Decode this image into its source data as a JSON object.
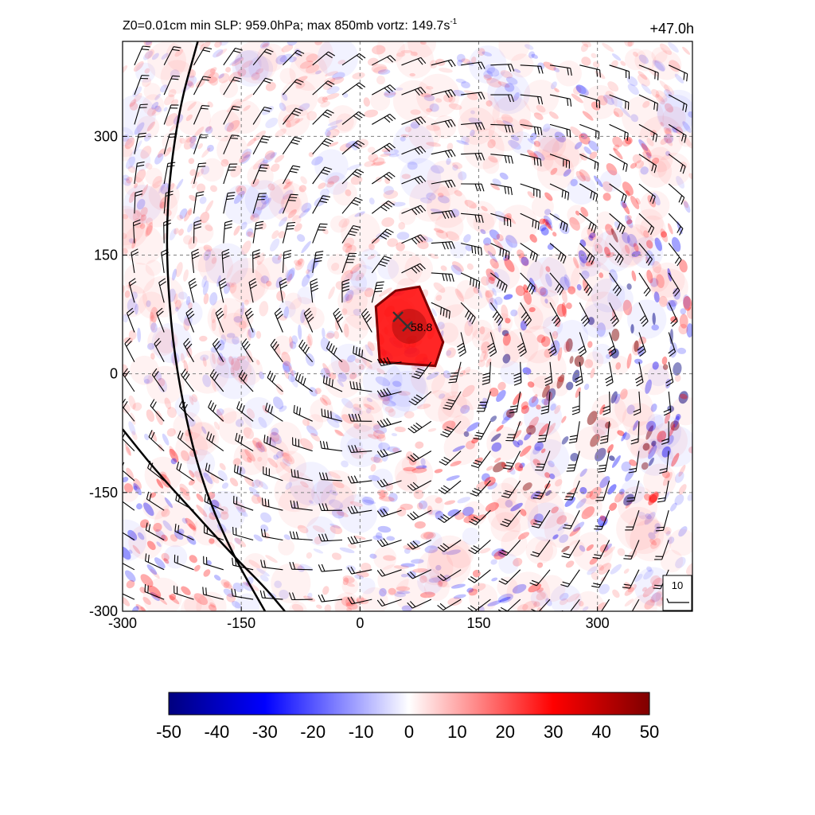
{
  "title": {
    "left_text": "Z0=0.01cm  min SLP: 959.0hPa; max 850mb vortz: 149.7s",
    "left_superscript": "-1",
    "right_text": "+47.0h"
  },
  "colors": {
    "negative_max": "#00007f",
    "negative_mid": "#0000ff",
    "zero": "#ffffff",
    "positive_mid": "#ff0000",
    "positive_max": "#7f0000",
    "wind_barb": "#000000",
    "contour": "#000000",
    "grid": "#808080",
    "center_marker": "#333333"
  },
  "chart_data": {
    "type": "heatmap",
    "variable": "850mb relative vorticity with wind barbs",
    "x": {
      "range": [
        -300,
        420
      ],
      "ticks": [
        -300,
        -150,
        0,
        150,
        300
      ],
      "tick_labels": [
        "-300",
        "-150",
        "0",
        "150",
        "300"
      ]
    },
    "y": {
      "range": [
        -300,
        420
      ],
      "ticks": [
        -300,
        -150,
        0,
        150,
        300
      ],
      "tick_labels": [
        "-300",
        "-150",
        "0",
        "150",
        "300"
      ]
    },
    "grid": true,
    "colorbar": {
      "range": [
        -50,
        50
      ],
      "ticks": [
        -50,
        -40,
        -30,
        -20,
        -10,
        0,
        10,
        20,
        30,
        40,
        50
      ],
      "tick_labels": [
        "-50",
        "-40",
        "-30",
        "-20",
        "-10",
        "0",
        "10",
        "20",
        "30",
        "40",
        "50"
      ]
    },
    "storm_center": {
      "x": 60,
      "y": 60,
      "label": "58.8"
    },
    "storm_center_previous": {
      "x": 48,
      "y": 72
    },
    "core_max_vorticity_region": {
      "x_range": [
        20,
        105
      ],
      "y_range": [
        10,
        110
      ]
    },
    "barb_reference": {
      "label": "10",
      "position": "bottom-right"
    },
    "contours": [
      [
        [
          -205,
          420
        ],
        [
          -230,
          330
        ],
        [
          -246,
          200
        ],
        [
          -240,
          60
        ],
        [
          -220,
          -60
        ],
        [
          -195,
          -150
        ],
        [
          -160,
          -230
        ],
        [
          -120,
          -300
        ]
      ],
      [
        [
          -300,
          -70
        ],
        [
          -260,
          -120
        ],
        [
          -210,
          -175
        ],
        [
          -160,
          -230
        ],
        [
          -120,
          -270
        ],
        [
          -95,
          -300
        ]
      ]
    ]
  }
}
